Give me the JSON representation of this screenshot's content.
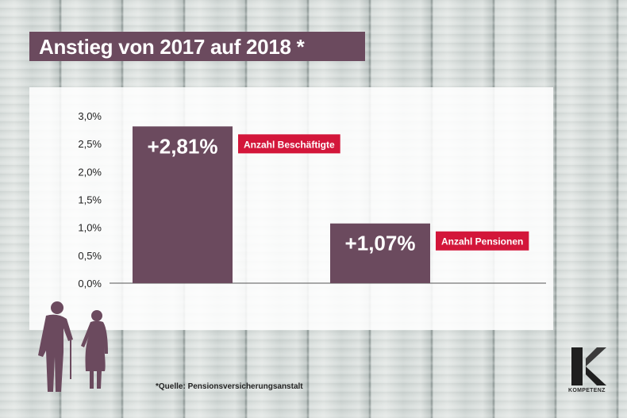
{
  "title": "Anstieg von 2017 auf 2018 *",
  "footnote": "*Quelle: Pensionsversicherungsanstalt",
  "brand": {
    "name": "KOMPETENZ",
    "logo_icon": "k-logo-icon"
  },
  "colors": {
    "bar": "#6b4a5e",
    "label_box": "#d3163a",
    "title_bg": "#6b4a5e"
  },
  "chart_data": {
    "type": "bar",
    "title": "Anstieg von 2017 auf 2018 *",
    "xlabel": "",
    "ylabel": "",
    "ylim": [
      0,
      3.0
    ],
    "yticks": [
      "0,0%",
      "0,5%",
      "1,0%",
      "1,5%",
      "2,0%",
      "2,5%",
      "3,0%"
    ],
    "categories": [
      "Anzahl Beschäftigte",
      "Anzahl Pensionen"
    ],
    "values": [
      2.81,
      1.07
    ],
    "data_labels": [
      "+2,81%",
      "+1,07%"
    ],
    "grid": false,
    "legend": "none"
  }
}
